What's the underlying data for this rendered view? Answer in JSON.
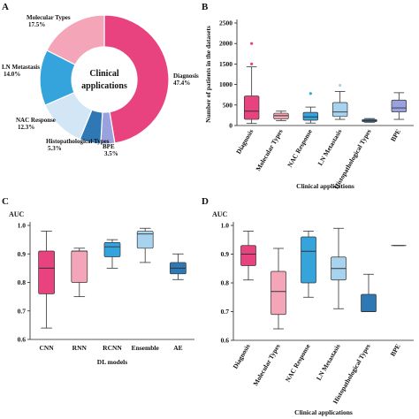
{
  "colors": {
    "diagnosis": "#e8437f",
    "molecular_types": "#f4a5b7",
    "nac_response": "#35a4dc",
    "ln_metastasis": "#a8d3ef",
    "histopathological_types": "#2f78b6",
    "bpe": "#9aa2de"
  },
  "chart_data": [
    {
      "panel": "A",
      "type": "pie",
      "center_label": [
        "Clinical",
        "applications"
      ],
      "slices": [
        {
          "label": "Diagnosis",
          "value": 47.4,
          "text": "47.4%",
          "color": "#e8437f"
        },
        {
          "label": "BPE",
          "value": 3.5,
          "text": "3.5%",
          "color": "#9aa2de"
        },
        {
          "label": "Histopathological Types",
          "value": 5.3,
          "text": "5.3%",
          "color": "#2f78b6"
        },
        {
          "label": "NAC Response",
          "value": 12.3,
          "text": "12.3%",
          "color": "#d3e6f5"
        },
        {
          "label": "LN Metastasis",
          "value": 14.0,
          "text": "14.0%",
          "color": "#35a4dc"
        },
        {
          "label": "Molecular Types",
          "value": 17.5,
          "text": "17.5%",
          "color": "#f4a5b7"
        }
      ]
    },
    {
      "panel": "B",
      "type": "box",
      "ylabel": "Number of patients in the datasets",
      "xlabel": "Clinical applications",
      "ylim": [
        0,
        2500
      ],
      "yticks": [
        0,
        500,
        1000,
        1500,
        2000,
        2500
      ],
      "boxes": [
        {
          "label": "Diagnosis",
          "min": 50,
          "q1": 150,
          "median": 350,
          "q3": 720,
          "max": 1430,
          "outliers": [
            1500,
            2000
          ],
          "color": "#e8437f"
        },
        {
          "label": "Molecular Types",
          "min": 120,
          "q1": 160,
          "median": 240,
          "q3": 300,
          "max": 350,
          "outliers": [],
          "color": "#f4a5b7"
        },
        {
          "label": "NAC Response",
          "min": 60,
          "q1": 130,
          "median": 210,
          "q3": 320,
          "max": 450,
          "outliers": [
            780
          ],
          "color": "#35a4dc"
        },
        {
          "label": "LN Metastasis",
          "min": 150,
          "q1": 220,
          "median": 330,
          "q3": 560,
          "max": 830,
          "outliers": [
            980
          ],
          "color": "#a8d3ef"
        },
        {
          "label": "Histopathological Types",
          "min": 80,
          "q1": 90,
          "median": 120,
          "q3": 150,
          "max": 170,
          "outliers": [],
          "color": "#2f78b6"
        },
        {
          "label": "BPE",
          "min": 150,
          "q1": 330,
          "median": 430,
          "q3": 620,
          "max": 800,
          "outliers": [],
          "color": "#9aa2de"
        }
      ]
    },
    {
      "panel": "C",
      "type": "box",
      "title": "AUC",
      "xlabel": "DL models",
      "ylim": [
        0.6,
        1.0
      ],
      "yticks": [
        "0.6",
        "0.7",
        "0.8",
        "0.9",
        "1.0"
      ],
      "boxes": [
        {
          "label": "CNN",
          "min": 0.64,
          "q1": 0.76,
          "median": 0.85,
          "q3": 0.91,
          "max": 0.98,
          "color": "#e8437f"
        },
        {
          "label": "RNN",
          "min": 0.75,
          "q1": 0.8,
          "median": 0.91,
          "q3": 0.91,
          "max": 0.92,
          "color": "#f4a5b7"
        },
        {
          "label": "RCNN",
          "min": 0.85,
          "q1": 0.89,
          "median": 0.925,
          "q3": 0.94,
          "max": 0.95,
          "color": "#35a4dc"
        },
        {
          "label": "Ensemble",
          "min": 0.87,
          "q1": 0.92,
          "median": 0.97,
          "q3": 0.98,
          "max": 0.99,
          "color": "#a8d3ef"
        },
        {
          "label": "AE",
          "min": 0.81,
          "q1": 0.83,
          "median": 0.85,
          "q3": 0.87,
          "max": 0.9,
          "color": "#2f78b6"
        }
      ]
    },
    {
      "panel": "D",
      "type": "box",
      "title": "AUC",
      "xlabel": "Clinical applications",
      "ylim": [
        0.6,
        1.0
      ],
      "yticks": [
        "0.6",
        "0.7",
        "0.8",
        "0.9",
        "1.0"
      ],
      "boxes": [
        {
          "label": "Diagnosis",
          "min": 0.81,
          "q1": 0.86,
          "median": 0.9,
          "q3": 0.93,
          "max": 0.98,
          "color": "#e8437f"
        },
        {
          "label": "Molecular Types",
          "min": 0.64,
          "q1": 0.69,
          "median": 0.77,
          "q3": 0.84,
          "max": 0.92,
          "color": "#f4a5b7"
        },
        {
          "label": "NAC Response",
          "min": 0.75,
          "q1": 0.8,
          "median": 0.91,
          "q3": 0.96,
          "max": 0.98,
          "color": "#35a4dc"
        },
        {
          "label": "LN Metastasis",
          "min": 0.71,
          "q1": 0.81,
          "median": 0.85,
          "q3": 0.89,
          "max": 0.99,
          "color": "#a8d3ef"
        },
        {
          "label": "Histopathological Types",
          "min": 0.7,
          "q1": 0.7,
          "median": 0.7,
          "q3": 0.76,
          "max": 0.83,
          "color": "#2f78b6"
        },
        {
          "label": "BPE",
          "min": 0.93,
          "q1": 0.93,
          "median": 0.93,
          "q3": 0.93,
          "max": 0.93,
          "color": "#9aa2de"
        }
      ]
    }
  ],
  "panel_letters": [
    "A",
    "B",
    "C",
    "D"
  ]
}
